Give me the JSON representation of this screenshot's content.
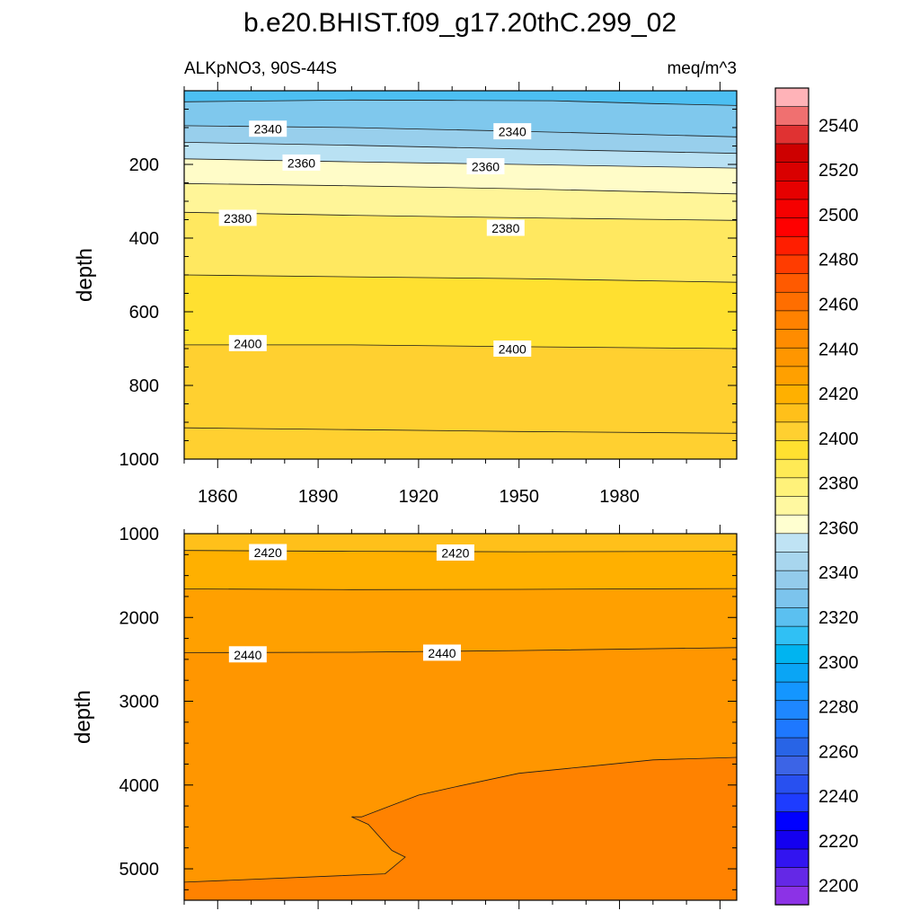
{
  "figure": {
    "title": "b.e20.BHIST.f09_g17.20thC.299_02",
    "left_label": "ALKpNO3, 90S-44S",
    "right_label": "meq/m^3"
  },
  "chart_data": [
    {
      "type": "heatmap",
      "panel": "upper",
      "xlabel": "",
      "ylabel": "depth",
      "xlim": [
        1850,
        2015
      ],
      "ylim": [
        1000,
        0
      ],
      "x_ticks": [
        1860,
        1890,
        1920,
        1950,
        1980
      ],
      "y_ticks": [
        200,
        400,
        600,
        800,
        1000
      ],
      "contours": [
        {
          "level": 2330,
          "x": [
            1850,
            1870,
            1900,
            1930,
            1960,
            1990,
            2015
          ],
          "depth": [
            30,
            28,
            25,
            26,
            27,
            35,
            40
          ]
        },
        {
          "level": 2340,
          "x": [
            1850,
            1900,
            1950,
            2015
          ],
          "depth": [
            95,
            100,
            110,
            125
          ]
        },
        {
          "level": 2350,
          "x": [
            1850,
            1900,
            1950,
            2015
          ],
          "depth": [
            140,
            148,
            158,
            170
          ]
        },
        {
          "level": 2360,
          "x": [
            1850,
            1900,
            1950,
            2015
          ],
          "depth": [
            185,
            193,
            200,
            210
          ]
        },
        {
          "level": 2370,
          "x": [
            1850,
            1900,
            1950,
            2015
          ],
          "depth": [
            252,
            258,
            266,
            280
          ]
        },
        {
          "level": 2380,
          "x": [
            1850,
            1900,
            1950,
            2015
          ],
          "depth": [
            330,
            338,
            345,
            352
          ]
        },
        {
          "level": 2390,
          "x": [
            1850,
            1900,
            1950,
            2015
          ],
          "depth": [
            500,
            505,
            510,
            520
          ]
        },
        {
          "level": 2400,
          "x": [
            1850,
            1900,
            1950,
            2015
          ],
          "depth": [
            690,
            690,
            695,
            700
          ]
        },
        {
          "level": 2410,
          "x": [
            1850,
            1900,
            1950,
            2015
          ],
          "depth": [
            915,
            920,
            925,
            930
          ]
        }
      ],
      "contour_labels": [
        {
          "text": "2340",
          "x": 1875,
          "depth": 103
        },
        {
          "text": "2340",
          "x": 1948,
          "depth": 110
        },
        {
          "text": "2360",
          "x": 1885,
          "depth": 195
        },
        {
          "text": "2360",
          "x": 1940,
          "depth": 205
        },
        {
          "text": "2380",
          "x": 1866,
          "depth": 345
        },
        {
          "text": "2380",
          "x": 1946,
          "depth": 372
        },
        {
          "text": "2400",
          "x": 1869,
          "depth": 685
        },
        {
          "text": "2400",
          "x": 1948,
          "depth": 700
        }
      ]
    },
    {
      "type": "heatmap",
      "panel": "lower",
      "xlabel": "",
      "ylabel": "depth",
      "xlim": [
        1850,
        2015
      ],
      "ylim": [
        5375,
        1000
      ],
      "y_ticks": [
        1000,
        2000,
        3000,
        4000,
        5000
      ],
      "contours": [
        {
          "level": 2420,
          "x": [
            1850,
            1900,
            1950,
            2015
          ],
          "depth": [
            1200,
            1210,
            1215,
            1210
          ]
        },
        {
          "level": 2430,
          "x": [
            1850,
            1900,
            1950,
            2015
          ],
          "depth": [
            1660,
            1668,
            1665,
            1655
          ]
        },
        {
          "level": 2440,
          "x": [
            1850,
            1900,
            1950,
            2015
          ],
          "depth": [
            2420,
            2415,
            2395,
            2360
          ]
        },
        {
          "level": 2450,
          "x": [
            2015,
            1990,
            1970,
            1950,
            1930,
            1920,
            1903,
            1900,
            1905,
            1912,
            1916,
            1910,
            1850
          ],
          "depth": [
            3670,
            3700,
            3780,
            3860,
            4030,
            4120,
            4380,
            4380,
            4470,
            4780,
            4860,
            5060,
            5160
          ]
        }
      ],
      "contour_labels": [
        {
          "text": "2420",
          "x": 1875,
          "depth": 1220
        },
        {
          "text": "2420",
          "x": 1931,
          "depth": 1225
        },
        {
          "text": "2440",
          "x": 1869,
          "depth": 2440
        },
        {
          "text": "2440",
          "x": 1927,
          "depth": 2420
        }
      ]
    }
  ],
  "colorbar": {
    "tick_labels": [
      "2540",
      "2520",
      "2500",
      "2480",
      "2460",
      "2440",
      "2420",
      "2400",
      "2380",
      "2360",
      "2340",
      "2320",
      "2300",
      "2280",
      "2260",
      "2240",
      "2220",
      "2200"
    ],
    "colors_top_to_bottom": [
      "#ffb3b8",
      "#f07070",
      "#e03232",
      "#cd0000",
      "#d90000",
      "#e60000",
      "#f50000",
      "#ff0000",
      "#ff1e00",
      "#ff3c00",
      "#ff5a00",
      "#ff6e00",
      "#ff8200",
      "#ff8c00",
      "#ff9600",
      "#ffa000",
      "#ffb000",
      "#ffc01a",
      "#ffd030",
      "#ffe030",
      "#ffea55",
      "#fff27a",
      "#fff8a0",
      "#ffffd0",
      "#bfe3f4",
      "#a8d6ee",
      "#93cbeb",
      "#7cc4ed",
      "#5bc0f0",
      "#30c0f4",
      "#00b4f0",
      "#0aa5f5",
      "#1496ff",
      "#1e87ff",
      "#1e78ff",
      "#2864e6",
      "#3c64e6",
      "#2850f0",
      "#1e3cff",
      "#0000ff",
      "#1400f0",
      "#3214f0",
      "#6428e6",
      "#8c32e6"
    ]
  },
  "colors": {
    "upper_bands": [
      "#4cbff2",
      "#7fc8ed",
      "#98cfec",
      "#b9e1f3",
      "#fffcc8",
      "#fff598",
      "#ffe860",
      "#ffe030",
      "#ffd030"
    ],
    "lower_bands": [
      "#ffc01a",
      "#ffb000",
      "#ffa000",
      "#ff9600",
      "#ff8200"
    ],
    "contour_line": "#1a1a1a"
  }
}
